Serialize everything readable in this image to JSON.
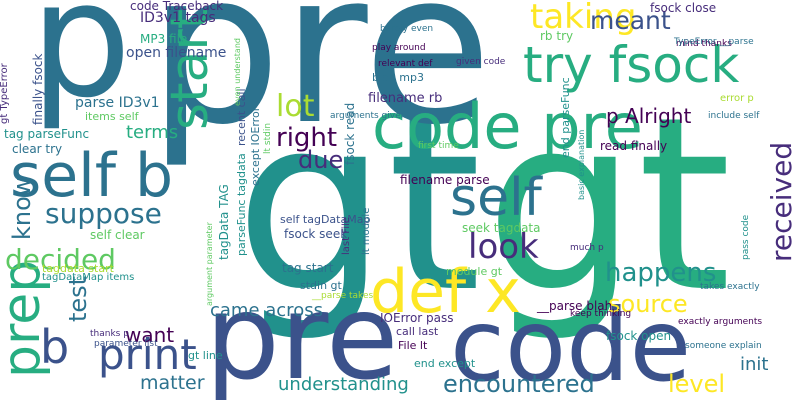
{
  "palette": {
    "background": "#ffffff",
    "purple": "#440154",
    "indigo": "#472d7b",
    "blue": "#3b528b",
    "steel": "#2c728e",
    "teal": "#21918c",
    "green": "#27ad81",
    "lime": "#5ec962",
    "yellow": "#aadc32",
    "gold": "#fde725"
  },
  "words": [
    {
      "text": "gt",
      "color": "teal"
    },
    {
      "text": "gt",
      "color": "green"
    },
    {
      "text": "pre",
      "color": "steel"
    },
    {
      "text": "p",
      "color": "steel"
    },
    {
      "text": "pre",
      "color": "blue"
    },
    {
      "text": "code",
      "color": "blue"
    },
    {
      "text": "code pre",
      "color": "green"
    },
    {
      "text": "try fsock",
      "color": "green"
    },
    {
      "text": "self b",
      "color": "steel"
    },
    {
      "text": "start end",
      "color": "green"
    },
    {
      "text": "def x",
      "color": "gold"
    },
    {
      "text": "prep",
      "color": "green"
    },
    {
      "text": "prep",
      "color": "green"
    },
    {
      "text": "self",
      "color": "steel"
    },
    {
      "text": "b",
      "color": "blue"
    },
    {
      "text": "print",
      "color": "blue"
    },
    {
      "text": "taking",
      "color": "gold"
    },
    {
      "text": "meant",
      "color": "blue"
    },
    {
      "text": "received",
      "color": "indigo"
    },
    {
      "text": "look",
      "color": "indigo"
    },
    {
      "text": "lot",
      "color": "yellow"
    },
    {
      "text": "right",
      "color": "purple"
    },
    {
      "text": "suppose",
      "color": "steel"
    },
    {
      "text": "decided",
      "color": "lime"
    },
    {
      "text": "know",
      "color": "steel"
    },
    {
      "text": "test",
      "color": "steel"
    },
    {
      "text": "happens",
      "color": "teal"
    },
    {
      "text": "source",
      "color": "gold"
    },
    {
      "text": "encountered",
      "color": "steel"
    },
    {
      "text": "level",
      "color": "gold"
    },
    {
      "text": "due",
      "color": "indigo"
    },
    {
      "text": "want",
      "color": "purple"
    },
    {
      "text": "came across",
      "color": "steel"
    },
    {
      "text": "matter",
      "color": "steel"
    },
    {
      "text": "understanding",
      "color": "teal"
    },
    {
      "text": "init",
      "color": "steel"
    },
    {
      "text": "terms",
      "color": "green"
    },
    {
      "text": "p Alright",
      "color": "purple"
    },
    {
      "text": "ID3v1 tags",
      "color": "indigo"
    },
    {
      "text": "code Traceback",
      "color": "indigo"
    },
    {
      "text": "MP3 file",
      "color": "green"
    },
    {
      "text": "open filename",
      "color": "blue"
    },
    {
      "text": "filename rb",
      "color": "indigo"
    },
    {
      "text": "fsock close",
      "color": "indigo"
    },
    {
      "text": "rb try",
      "color": "lime"
    },
    {
      "text": "parse ID3v1",
      "color": "steel"
    },
    {
      "text": "items self",
      "color": "lime"
    },
    {
      "text": "clear try",
      "color": "steel"
    },
    {
      "text": "tag parseFunc",
      "color": "teal"
    },
    {
      "text": "self clear",
      "color": "lime"
    },
    {
      "text": "fsock seek",
      "color": "blue"
    },
    {
      "text": "self tagDataMap",
      "color": "blue"
    },
    {
      "text": "seek tagdata",
      "color": "lime"
    },
    {
      "text": "filename parse",
      "color": "purple"
    },
    {
      "text": "tag start",
      "color": "steel"
    },
    {
      "text": "stdin gt",
      "color": "steel"
    },
    {
      "text": "module gt",
      "color": "lime"
    },
    {
      "text": "fsock read",
      "color": "steel"
    },
    {
      "text": "read finally",
      "color": "purple"
    },
    {
      "text": "finally fsock",
      "color": "blue"
    },
    {
      "text": "gt TypeError",
      "color": "indigo"
    },
    {
      "text": "recent call",
      "color": "blue"
    },
    {
      "text": "end parseFunc",
      "color": "teal"
    },
    {
      "text": "IOError pass",
      "color": "indigo"
    },
    {
      "text": "call last",
      "color": "indigo"
    },
    {
      "text": "File lt",
      "color": "purple"
    },
    {
      "text": "end except",
      "color": "teal"
    },
    {
      "text": "gt line",
      "color": "teal"
    },
    {
      "text": "fsock open",
      "color": "teal"
    },
    {
      "text": "__parse blah",
      "color": "purple"
    },
    {
      "text": "blah mp3",
      "color": "steel"
    },
    {
      "text": "play around",
      "color": "purple"
    },
    {
      "text": "barely even",
      "color": "steel"
    },
    {
      "text": "relevant def",
      "color": "purple"
    },
    {
      "text": "given code",
      "color": "indigo"
    },
    {
      "text": "mind thanks",
      "color": "purple"
    },
    {
      "text": "TypeError __parse",
      "color": "steel"
    },
    {
      "text": "error p",
      "color": "yellow"
    },
    {
      "text": "include self",
      "color": "steel"
    },
    {
      "text": "arguments given",
      "color": "steel"
    },
    {
      "text": "first time",
      "color": "lime"
    },
    {
      "text": "tagData TAG",
      "color": "teal"
    },
    {
      "text": "parseFunc tagdata",
      "color": "teal"
    },
    {
      "text": "except IOError",
      "color": "steel"
    },
    {
      "text": "tagdata start",
      "color": "yellow"
    },
    {
      "text": "tagDataMap items",
      "color": "teal"
    },
    {
      "text": "keep thinking",
      "color": "purple"
    },
    {
      "text": "exactly arguments",
      "color": "purple"
    },
    {
      "text": "someone explain",
      "color": "steel"
    },
    {
      "text": "takes exactly",
      "color": "steel"
    },
    {
      "text": "thanks p",
      "color": "indigo"
    },
    {
      "text": "parameter list",
      "color": "blue"
    },
    {
      "text": "last File",
      "color": "indigo"
    },
    {
      "text": "lt module",
      "color": "steel"
    },
    {
      "text": "much p",
      "color": "indigo"
    },
    {
      "text": "pass code",
      "color": "teal"
    },
    {
      "text": "basic explanation",
      "color": "teal"
    },
    {
      "text": "even understand",
      "color": "lime"
    },
    {
      "text": "lt stdin",
      "color": "lime"
    },
    {
      "text": "argument parameter",
      "color": "lime"
    },
    {
      "text": "__parse takes",
      "color": "yellow"
    }
  ]
}
